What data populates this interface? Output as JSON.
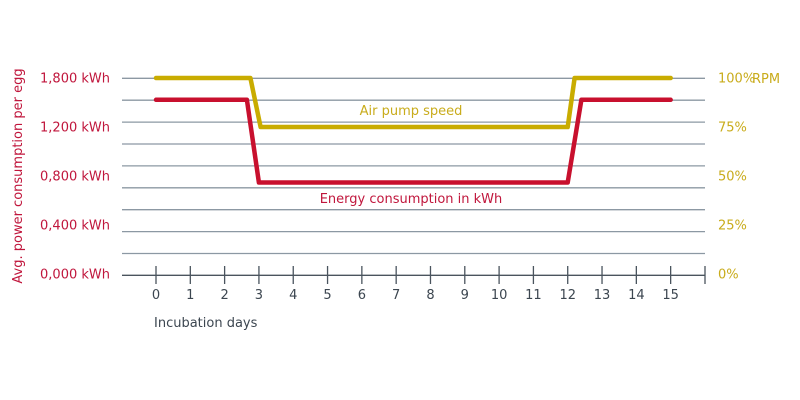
{
  "chart_data": {
    "type": "line",
    "xlabel": "Incubation days",
    "ylabel_left": "Avg. power consumption per egg",
    "ylabel_right_unit": "RPM",
    "x_ticks": [
      "0",
      "1",
      "2",
      "3",
      "4",
      "5",
      "6",
      "7",
      "8",
      "9",
      "10",
      "11",
      "12",
      "13",
      "14",
      "15"
    ],
    "xlim": [
      -1,
      16.5
    ],
    "y_left_ticks": [
      {
        "value": 0,
        "label": "0,000 kWh"
      },
      {
        "value": 0.4,
        "label": "0,400 kWh"
      },
      {
        "value": 0.8,
        "label": "0,800 kWh"
      },
      {
        "value": 1.2,
        "label": "1,200 kWh"
      },
      {
        "value": 1.8,
        "label": "1,800 kWh"
      }
    ],
    "y_right_ticks": [
      {
        "value": 0,
        "label": "0%"
      },
      {
        "value": 25,
        "label": "25%"
      },
      {
        "value": 50,
        "label": "50%"
      },
      {
        "value": 75,
        "label": "75%"
      },
      {
        "value": 100,
        "label": "100%"
      }
    ],
    "grid": true,
    "series": [
      {
        "name": "Air pump speed",
        "axis": "right",
        "color": "#c9ac00",
        "x": [
          0,
          2.75,
          3.05,
          12.0,
          12.2,
          15
        ],
        "y": [
          100,
          100,
          75,
          75,
          100,
          100
        ]
      },
      {
        "name": "Energy consumption in kWh",
        "axis": "left",
        "color": "#c8102e",
        "x": [
          0,
          2.65,
          3.0,
          12.0,
          12.4,
          15
        ],
        "y": [
          1.6,
          1.6,
          0.84,
          0.84,
          1.6,
          1.6
        ]
      }
    ]
  }
}
